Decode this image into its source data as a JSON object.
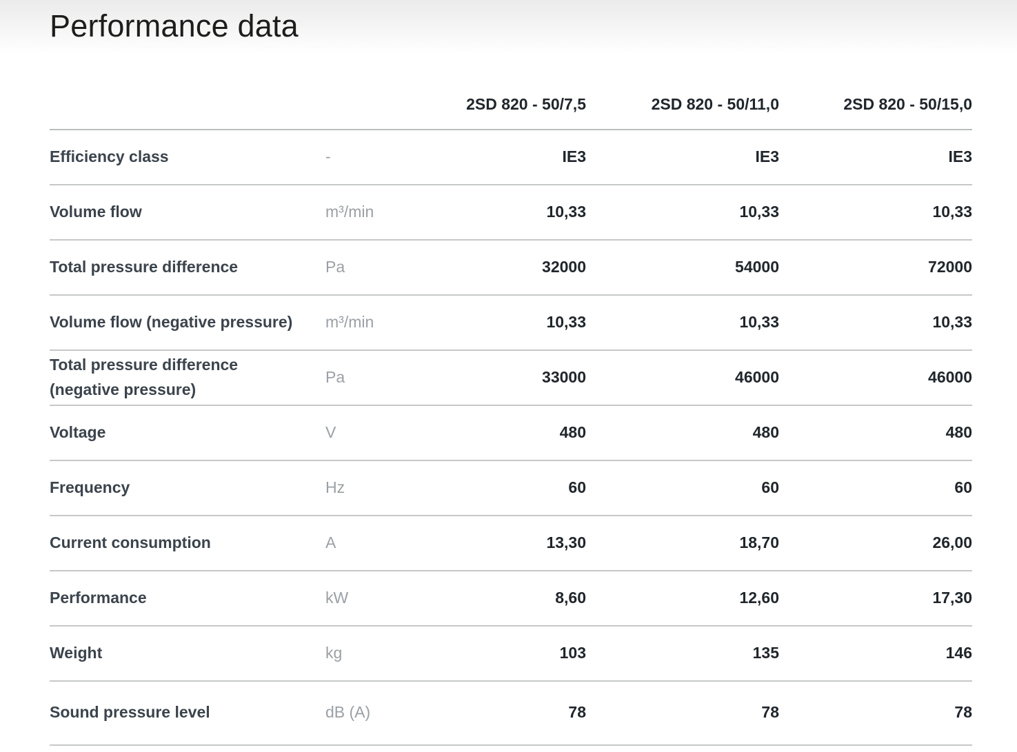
{
  "page": {
    "title": "Performance data"
  },
  "colors": {
    "title_text": "#1d1d1b",
    "label_text": "#3b434c",
    "unit_text": "#9aa0a5",
    "value_text": "#20262b",
    "divider": "#c6c8c8",
    "background_gradient_top": "#ebebeb",
    "background": "#ffffff"
  },
  "table": {
    "columns": [
      "2SD 820 - 50/7,5",
      "2SD 820 - 50/11,0",
      "2SD 820 - 50/15,0"
    ],
    "rows": [
      {
        "label": "Efficiency class",
        "unit": "-",
        "values": [
          "IE3",
          "IE3",
          "IE3"
        ]
      },
      {
        "label": "Volume flow",
        "unit": "m³/min",
        "values": [
          "10,33",
          "10,33",
          "10,33"
        ]
      },
      {
        "label": "Total pressure difference",
        "unit": "Pa",
        "values": [
          "32000",
          "54000",
          "72000"
        ]
      },
      {
        "label": "Volume flow (negative pressure)",
        "unit": "m³/min",
        "values": [
          "10,33",
          "10,33",
          "10,33"
        ]
      },
      {
        "label": "Total pressure difference (negative pressure)",
        "unit": "Pa",
        "values": [
          "33000",
          "46000",
          "46000"
        ]
      },
      {
        "label": "Voltage",
        "unit": "V",
        "values": [
          "480",
          "480",
          "480"
        ]
      },
      {
        "label": "Frequency",
        "unit": "Hz",
        "values": [
          "60",
          "60",
          "60"
        ]
      },
      {
        "label": "Current consumption",
        "unit": "A",
        "values": [
          "13,30",
          "18,70",
          "26,00"
        ]
      },
      {
        "label": "Performance",
        "unit": "kW",
        "values": [
          "8,60",
          "12,60",
          "17,30"
        ]
      },
      {
        "label": "Weight",
        "unit": "kg",
        "values": [
          "103",
          "135",
          "146"
        ]
      },
      {
        "label": "Sound pressure level",
        "unit": "dB (A)",
        "values": [
          "78",
          "78",
          "78"
        ]
      }
    ]
  }
}
